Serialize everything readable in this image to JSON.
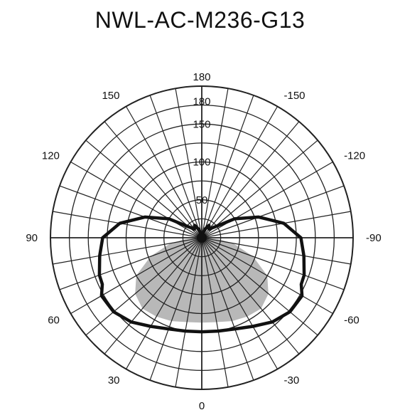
{
  "chart_data": {
    "type": "polar",
    "title": "NWL-AC-M236-G13",
    "radial_ticks": [
      50,
      100,
      150,
      180
    ],
    "radial_max": 200,
    "angle_labels_left": [
      {
        "angle": 0,
        "label": "0"
      },
      {
        "angle": 30,
        "label": "30"
      },
      {
        "angle": 60,
        "label": "60"
      },
      {
        "angle": 90,
        "label": "90"
      },
      {
        "angle": 120,
        "label": "120"
      },
      {
        "angle": 150,
        "label": "150"
      },
      {
        "angle": 180,
        "label": "180"
      }
    ],
    "angle_labels_right": [
      {
        "angle": 30,
        "label": "-30"
      },
      {
        "angle": 60,
        "label": "-60"
      },
      {
        "angle": 90,
        "label": "-90"
      },
      {
        "angle": 120,
        "label": "-120"
      },
      {
        "angle": 150,
        "label": "-150"
      }
    ],
    "series": [
      {
        "style": "outline",
        "color": "#111111",
        "points": [
          {
            "angle": 0,
            "value": 124
          },
          {
            "angle": 10,
            "value": 125
          },
          {
            "angle": 20,
            "value": 128
          },
          {
            "angle": 30,
            "value": 135
          },
          {
            "angle": 40,
            "value": 145
          },
          {
            "angle": 50,
            "value": 152
          },
          {
            "angle": 55,
            "value": 152
          },
          {
            "angle": 60,
            "value": 153
          },
          {
            "angle": 65,
            "value": 145
          },
          {
            "angle": 70,
            "value": 144
          },
          {
            "angle": 80,
            "value": 137
          },
          {
            "angle": 90,
            "value": 131
          },
          {
            "angle": 100,
            "value": 110
          },
          {
            "angle": 110,
            "value": 80
          },
          {
            "angle": 120,
            "value": 50
          },
          {
            "angle": 130,
            "value": 22
          },
          {
            "angle": 140,
            "value": 15
          },
          {
            "angle": 150,
            "value": 19
          },
          {
            "angle": 160,
            "value": 12
          },
          {
            "angle": 170,
            "value": 5
          },
          {
            "angle": 180,
            "value": 3
          }
        ]
      },
      {
        "style": "fill",
        "color": "#b8b8b8",
        "points": [
          {
            "angle": 0,
            "value": 112
          },
          {
            "angle": 10,
            "value": 113
          },
          {
            "angle": 20,
            "value": 117
          },
          {
            "angle": 30,
            "value": 120
          },
          {
            "angle": 40,
            "value": 122
          },
          {
            "angle": 50,
            "value": 115
          },
          {
            "angle": 60,
            "value": 100
          },
          {
            "angle": 70,
            "value": 72
          },
          {
            "angle": 80,
            "value": 42
          },
          {
            "angle": 85,
            "value": 22
          },
          {
            "angle": 90,
            "value": 0
          }
        ]
      }
    ]
  }
}
